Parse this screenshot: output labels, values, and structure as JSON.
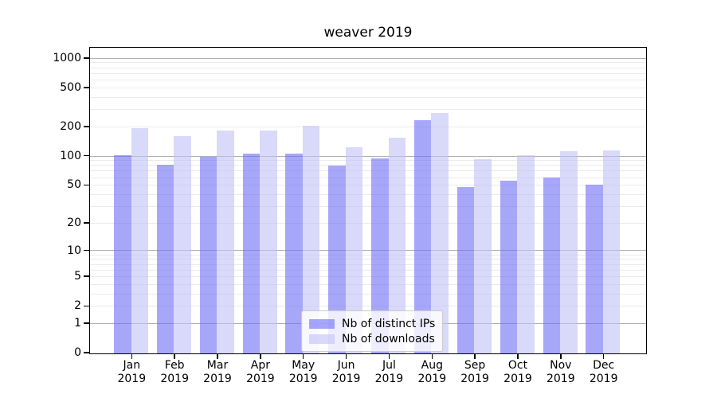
{
  "chart_data": {
    "type": "bar",
    "title": "weaver 2019",
    "categories": [
      "Jan 2019",
      "Feb 2019",
      "Mar 2019",
      "Apr 2019",
      "May 2019",
      "Jun 2019",
      "Jul 2019",
      "Aug 2019",
      "Sep 2019",
      "Oct 2019",
      "Nov 2019",
      "Dec 2019"
    ],
    "x_tick_months": [
      "Jan",
      "Feb",
      "Mar",
      "Apr",
      "May",
      "Jun",
      "Jul",
      "Aug",
      "Sep",
      "Oct",
      "Nov",
      "Dec"
    ],
    "x_tick_year": "2019",
    "series": [
      {
        "name": "Nb of distinct IPs",
        "values": [
          103,
          82,
          100,
          106,
          108,
          81,
          96,
          237,
          48,
          56,
          61,
          51
        ]
      },
      {
        "name": "Nb of downloads",
        "values": [
          196,
          163,
          184,
          184,
          205,
          125,
          157,
          276,
          93,
          103,
          114,
          115
        ]
      }
    ],
    "yscale": "log10(1+y)",
    "ylim": [
      0,
      1250
    ],
    "y_tick_labels": [
      "1000",
      "500",
      "200",
      "100",
      "50",
      "20",
      "10",
      "5",
      "2",
      "1",
      "0"
    ],
    "y_tick_values": [
      1000,
      500,
      200,
      100,
      50,
      20,
      10,
      5,
      2,
      1,
      0
    ],
    "major_gridlines": [
      1,
      10,
      100,
      1000
    ],
    "minor_gridlines": [
      2,
      3,
      4,
      5,
      6,
      7,
      8,
      9,
      20,
      30,
      40,
      50,
      60,
      70,
      80,
      90,
      200,
      300,
      400,
      500,
      600,
      700,
      800,
      900
    ],
    "grid": true,
    "legend_position": "lower center"
  },
  "legend": {
    "items": [
      {
        "label": "Nb of distinct IPs"
      },
      {
        "label": "Nb of downloads"
      }
    ]
  },
  "colors": {
    "bar_distinct_ips": "rgba(108,108,247,0.6)",
    "bar_downloads": "rgba(192,192,247,0.6)",
    "bar_distinct_ips_rendered": "#a7a7fa",
    "bar_downloads_rendered": "#d9d9fa",
    "major_gridline": "#b0b0b0",
    "minor_gridline": "#ebebeb",
    "axis": "#000000",
    "legend_border": "#cccccc"
  }
}
